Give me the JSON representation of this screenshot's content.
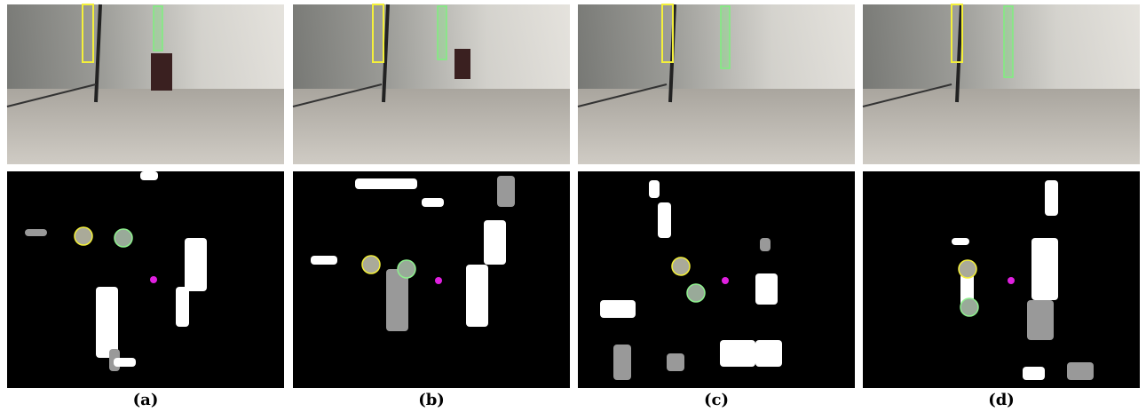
{
  "panels": [
    {
      "caption": "(a)"
    },
    {
      "caption": "(b)"
    },
    {
      "caption": "(c)"
    },
    {
      "caption": "(d)"
    }
  ]
}
